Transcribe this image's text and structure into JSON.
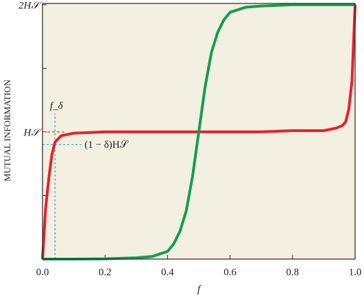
{
  "chart_data": {
    "type": "line",
    "xlabel": "f",
    "ylabel": "MUTUAL INFORMATION",
    "x": [
      0,
      0.01,
      0.02,
      0.03,
      0.04,
      0.06,
      0.1,
      0.2,
      0.3,
      0.35,
      0.4,
      0.42,
      0.44,
      0.46,
      0.48,
      0.5,
      0.52,
      0.54,
      0.56,
      0.58,
      0.6,
      0.65,
      0.7,
      0.8,
      0.9,
      0.94,
      0.96,
      0.97,
      0.98,
      0.99,
      1
    ],
    "series": [
      {
        "color": "#e8202a",
        "values": [
          0,
          0.4,
          0.63,
          0.82,
          0.92,
          0.97,
          0.99,
          1,
          1,
          1,
          1,
          1,
          1,
          1,
          1,
          1,
          1,
          1,
          1,
          1,
          1,
          1,
          1,
          1.01,
          1.01,
          1.03,
          1.05,
          1.08,
          1.18,
          1.4,
          2
        ]
      },
      {
        "color": "#10a04a",
        "values": [
          0,
          0,
          0,
          0,
          0,
          0,
          0,
          0.002,
          0.01,
          0.02,
          0.06,
          0.12,
          0.22,
          0.38,
          0.65,
          1,
          1.35,
          1.62,
          1.78,
          1.88,
          1.94,
          1.98,
          1.99,
          2,
          2,
          2,
          2,
          2,
          2,
          2,
          2
        ]
      }
    ],
    "xlim": [
      0,
      1
    ],
    "ylim": [
      0,
      2.01
    ],
    "xticks": [
      {
        "value": 0,
        "label": "0.0"
      },
      {
        "value": 0.2,
        "label": "0.2"
      },
      {
        "value": 0.4,
        "label": "0.4"
      },
      {
        "value": 0.6,
        "label": "0.6"
      },
      {
        "value": 0.8,
        "label": "0.8"
      },
      {
        "value": 1,
        "label": "1.0"
      }
    ],
    "yticks": [
      {
        "value": 1,
        "label": "H𝒮"
      },
      {
        "value": 2,
        "label": "2H𝒮"
      }
    ],
    "yminorticks": [
      0.5,
      1.5
    ],
    "annotations": [
      {
        "text": "f_δ",
        "x": 0.04
      },
      {
        "text": "(1 − δ)H𝒮",
        "y": 0.9,
        "x": 0.13
      }
    ],
    "background": "#f3efe1"
  }
}
